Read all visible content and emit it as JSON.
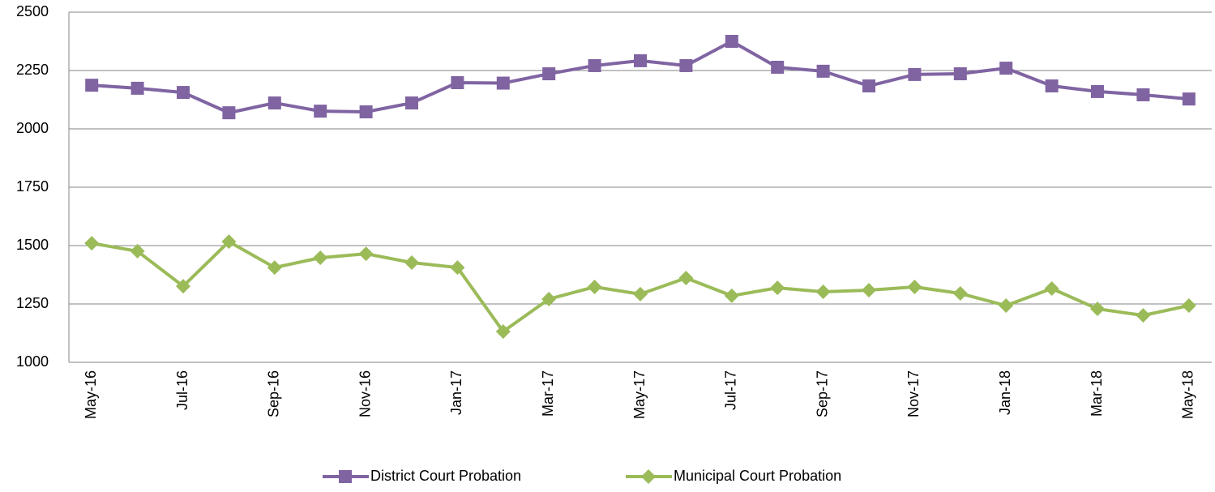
{
  "chart_data": {
    "type": "line",
    "categories": [
      "May-16",
      null,
      "Jul-16",
      null,
      "Sep-16",
      null,
      "Nov-16",
      null,
      "Jan-17",
      null,
      "Mar-17",
      null,
      "May-17",
      null,
      "Jul-17",
      null,
      "Sep-17",
      null,
      "Nov-17",
      null,
      "Jan-18",
      null,
      "Mar-18",
      null,
      "May-18"
    ],
    "series": [
      {
        "name": "District Court Probation",
        "color": "#8064a2",
        "marker": "square",
        "values": [
          2187,
          2174,
          2156,
          2069,
          2111,
          2076,
          2073,
          2111,
          2198,
          2196,
          2236,
          2271,
          2292,
          2271,
          2375,
          2264,
          2247,
          2184,
          2233,
          2236,
          2260,
          2184,
          2160,
          2146,
          2128
        ]
      },
      {
        "name": "Municipal Court Probation",
        "color": "#9bbb59",
        "marker": "diamond",
        "values": [
          1510,
          1476,
          1326,
          1517,
          1406,
          1448,
          1465,
          1427,
          1406,
          1132,
          1271,
          1323,
          1292,
          1361,
          1285,
          1319,
          1302,
          1309,
          1323,
          1295,
          1243,
          1316,
          1229,
          1201,
          1243
        ]
      }
    ],
    "ylim": [
      1000,
      2500
    ],
    "yticks": [
      1000,
      1250,
      1500,
      1750,
      2000,
      2250,
      2500
    ],
    "grid": true,
    "legend": "bottom"
  }
}
